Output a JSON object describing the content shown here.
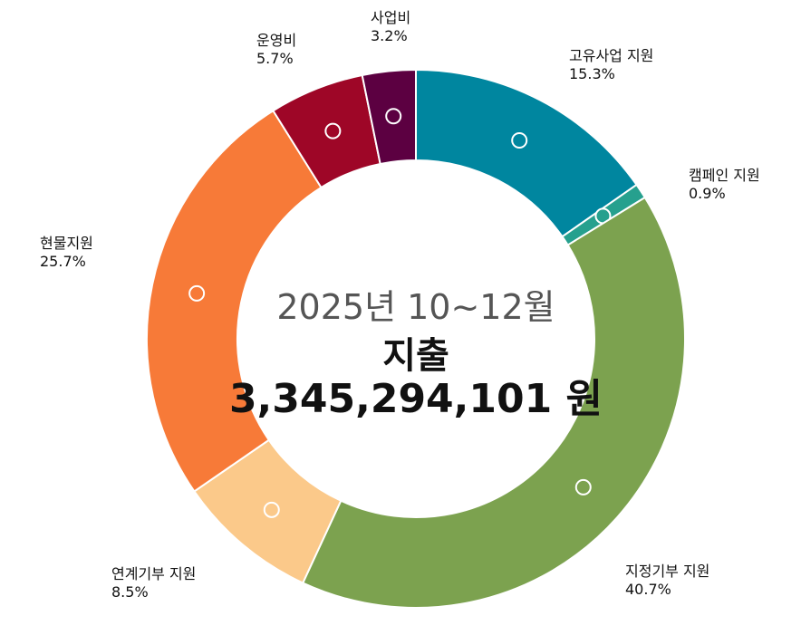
{
  "center": {
    "period": "2025년 10~12월",
    "title": "지출",
    "amount": "3,345,294,101 원"
  },
  "chart_data": {
    "type": "pie",
    "donut": true,
    "slices": [
      {
        "label": "고유사업 지원",
        "value": 15.3,
        "display": "15.3%",
        "color": "#00869f"
      },
      {
        "label": "캠페인 지원",
        "value": 0.9,
        "display": "0.9%",
        "color": "#26a08e"
      },
      {
        "label": "지정기부 지원",
        "value": 40.7,
        "display": "40.7%",
        "color": "#7ca24f"
      },
      {
        "label": "연계기부 지원",
        "value": 8.5,
        "display": "8.5%",
        "color": "#fbc98a"
      },
      {
        "label": "현물지원",
        "value": 25.7,
        "display": "25.7%",
        "color": "#f77a38"
      },
      {
        "label": "운영비",
        "value": 5.7,
        "display": "5.7%",
        "color": "#9e0627"
      },
      {
        "label": "사업비",
        "value": 3.2,
        "display": "3.2%",
        "color": "#5c0041"
      }
    ]
  }
}
